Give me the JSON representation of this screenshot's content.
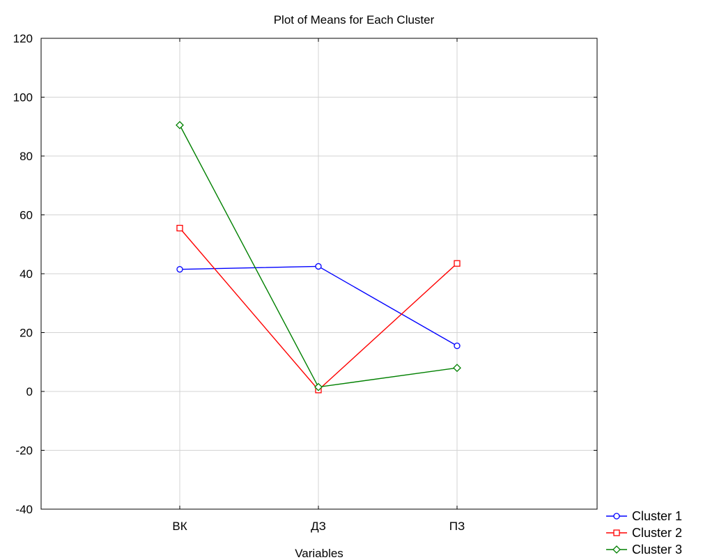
{
  "chart_data": {
    "type": "line",
    "title": "Plot of Means for Each Cluster",
    "xlabel": "Variables",
    "ylabel": "",
    "categories": [
      "ВК",
      "ДЗ",
      "ПЗ"
    ],
    "ylim": [
      -40,
      120
    ],
    "yticks": [
      -40,
      -20,
      0,
      20,
      40,
      60,
      80,
      100,
      120
    ],
    "grid": true,
    "legend_position": "bottom-right",
    "series": [
      {
        "name": "Cluster  1",
        "color": "#0000ff",
        "marker": "circle",
        "values": [
          41.5,
          42.5,
          15.5
        ]
      },
      {
        "name": "Cluster  2",
        "color": "#ff0000",
        "marker": "square",
        "values": [
          55.5,
          0.5,
          43.5
        ]
      },
      {
        "name": "Cluster  3",
        "color": "#008000",
        "marker": "diamond",
        "values": [
          90.5,
          1.5,
          8.0
        ]
      }
    ]
  }
}
